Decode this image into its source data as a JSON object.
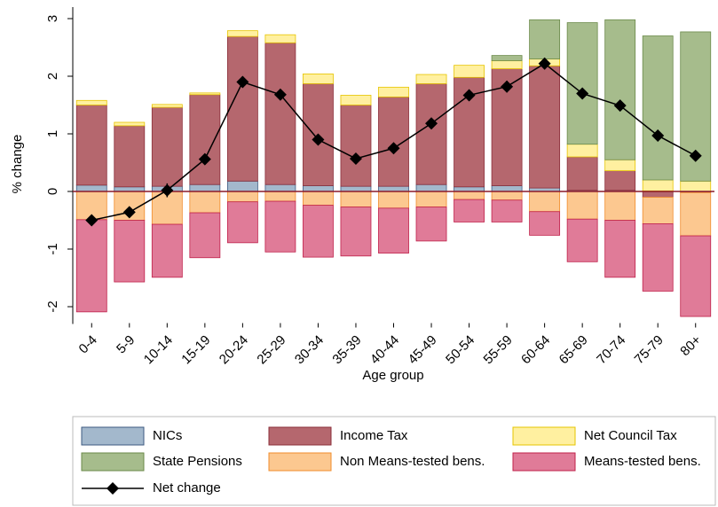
{
  "chart_data": {
    "type": "bar",
    "stacked": true,
    "y_label": "% change",
    "x_label": "Age group",
    "categories": [
      "0-4",
      "5-9",
      "10-14",
      "15-19",
      "20-24",
      "25-29",
      "30-34",
      "35-39",
      "40-44",
      "45-49",
      "50-54",
      "55-59",
      "60-64",
      "65-69",
      "70-74",
      "75-79",
      "80+"
    ],
    "ylim": [
      -2.3,
      3.2
    ],
    "yticks": [
      -2,
      -1,
      0,
      1,
      2,
      3
    ],
    "zero_line_color": "#8b1a2a",
    "series": [
      {
        "name": "NICs",
        "color": "#a3b8cc",
        "edgecolor": "#3d5a80",
        "values": [
          0.11,
          0.08,
          0.09,
          0.12,
          0.18,
          0.12,
          0.1,
          0.09,
          0.09,
          0.12,
          0.08,
          0.1,
          0.06,
          0.02,
          0.02,
          0.01,
          0.0
        ]
      },
      {
        "name": "Income Tax",
        "color": "#b5676e",
        "edgecolor": "#8b2f3a",
        "values": [
          1.39,
          1.06,
          1.37,
          1.56,
          2.51,
          2.46,
          1.77,
          1.41,
          1.55,
          1.75,
          1.9,
          2.03,
          2.12,
          0.58,
          0.34,
          -0.1,
          -0.02
        ]
      },
      {
        "name": "Net Council Tax",
        "color": "#fff0a0",
        "edgecolor": "#e6c400",
        "values": [
          0.08,
          0.06,
          0.05,
          0.03,
          0.1,
          0.14,
          0.17,
          0.17,
          0.17,
          0.16,
          0.21,
          0.14,
          0.12,
          0.22,
          0.19,
          0.19,
          0.18
        ]
      },
      {
        "name": "State Pensions",
        "color": "#a6bc8c",
        "edgecolor": "#6b8a4a",
        "values": [
          0,
          0,
          0,
          0,
          0,
          0,
          0,
          0,
          0,
          0,
          0,
          0.09,
          0.68,
          2.11,
          2.43,
          2.5,
          2.59
        ]
      },
      {
        "name": "Non Means-tested bens.",
        "color": "#fcc890",
        "edgecolor": "#f08c2c",
        "values": [
          -0.49,
          -0.5,
          -0.57,
          -0.37,
          -0.18,
          -0.17,
          -0.24,
          -0.27,
          -0.29,
          -0.27,
          -0.14,
          -0.15,
          -0.35,
          -0.48,
          -0.5,
          -0.46,
          -0.75
        ]
      },
      {
        "name": "Means-tested bens.",
        "color": "#e07b98",
        "edgecolor": "#c0204a",
        "values": [
          -1.6,
          -1.07,
          -0.92,
          -0.78,
          -0.71,
          -0.88,
          -0.9,
          -0.85,
          -0.78,
          -0.59,
          -0.39,
          -0.38,
          -0.41,
          -0.74,
          -0.99,
          -1.17,
          -1.4
        ]
      }
    ],
    "line_series": {
      "name": "Net change",
      "color": "#000000",
      "values": [
        -0.5,
        -0.36,
        0.02,
        0.56,
        1.9,
        1.68,
        0.9,
        0.57,
        0.75,
        1.18,
        1.67,
        1.82,
        2.22,
        1.7,
        1.49,
        0.97,
        0.62
      ],
      "errors": [
        0.08,
        0.08,
        0.12,
        0.09,
        0.1,
        0.09,
        0.09,
        0.08,
        0.09,
        0.09,
        0.1,
        0.1,
        0.1,
        0.08,
        0.09,
        0.1,
        0.09
      ]
    }
  }
}
